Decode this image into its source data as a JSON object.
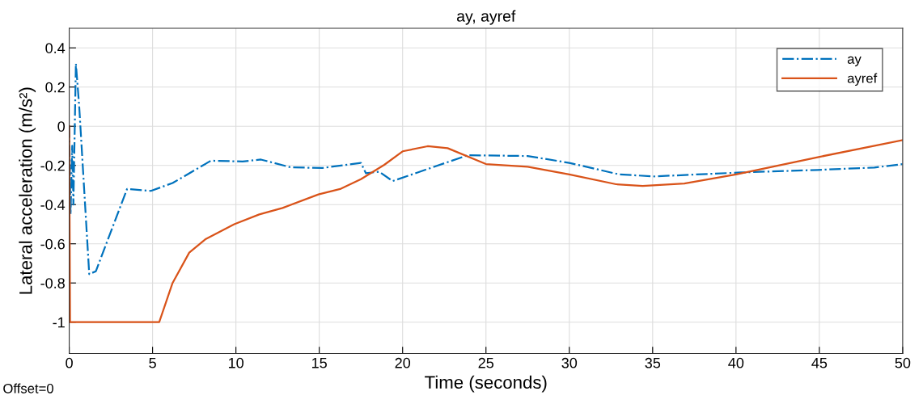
{
  "chart_data": {
    "type": "line",
    "title": "ay, ayref",
    "xlabel": "Time (seconds)",
    "ylabel": "Lateral acceleration (m/s²)",
    "xlim": [
      0,
      50
    ],
    "ylim": [
      -1.16,
      0.5
    ],
    "xticks": [
      0,
      5,
      10,
      15,
      20,
      25,
      30,
      35,
      40,
      45,
      50
    ],
    "yticks": [
      -1,
      -0.8,
      -0.6,
      -0.4,
      -0.2,
      0,
      0.2,
      0.4
    ],
    "grid": true,
    "legend": "top right",
    "annotations": [
      "Offset=0"
    ],
    "series": [
      {
        "name": "ay",
        "color": "#0072bd",
        "line_style": "dashdot",
        "x": [
          0,
          0.08,
          0.18,
          0.25,
          0.4,
          0.6,
          1.2,
          1.6,
          3.47,
          4.9,
          6.2,
          8.5,
          10.4,
          11.5,
          13.3,
          15.2,
          17.5,
          17.8,
          18.6,
          19.4,
          20.9,
          23.9,
          27.5,
          30.0,
          33.0,
          35.1,
          40.3,
          44.9,
          48.3,
          50
        ],
        "values": [
          0,
          -0.45,
          -0.1,
          -0.4,
          0.32,
          0.1,
          -0.755,
          -0.74,
          -0.32,
          -0.33,
          -0.29,
          -0.176,
          -0.18,
          -0.17,
          -0.21,
          -0.213,
          -0.187,
          -0.24,
          -0.232,
          -0.28,
          -0.236,
          -0.148,
          -0.152,
          -0.187,
          -0.246,
          -0.256,
          -0.236,
          -0.223,
          -0.211,
          -0.193
        ]
      },
      {
        "name": "ayref",
        "color": "#d95319",
        "line_style": "solid",
        "x": [
          0,
          0.05,
          5.4,
          6.2,
          7.2,
          8.2,
          9.9,
          11.4,
          12.8,
          14.95,
          16.3,
          17.5,
          18.9,
          20,
          21.5,
          22.7,
          25.0,
          27.5,
          30.0,
          32.8,
          34.4,
          36.9,
          40.0,
          44.9,
          50
        ],
        "values": [
          0,
          -1,
          -1,
          -0.8,
          -0.645,
          -0.575,
          -0.5,
          -0.45,
          -0.417,
          -0.348,
          -0.319,
          -0.27,
          -0.197,
          -0.128,
          -0.102,
          -0.112,
          -0.193,
          -0.207,
          -0.246,
          -0.296,
          -0.305,
          -0.292,
          -0.246,
          -0.158,
          -0.071
        ]
      }
    ]
  }
}
